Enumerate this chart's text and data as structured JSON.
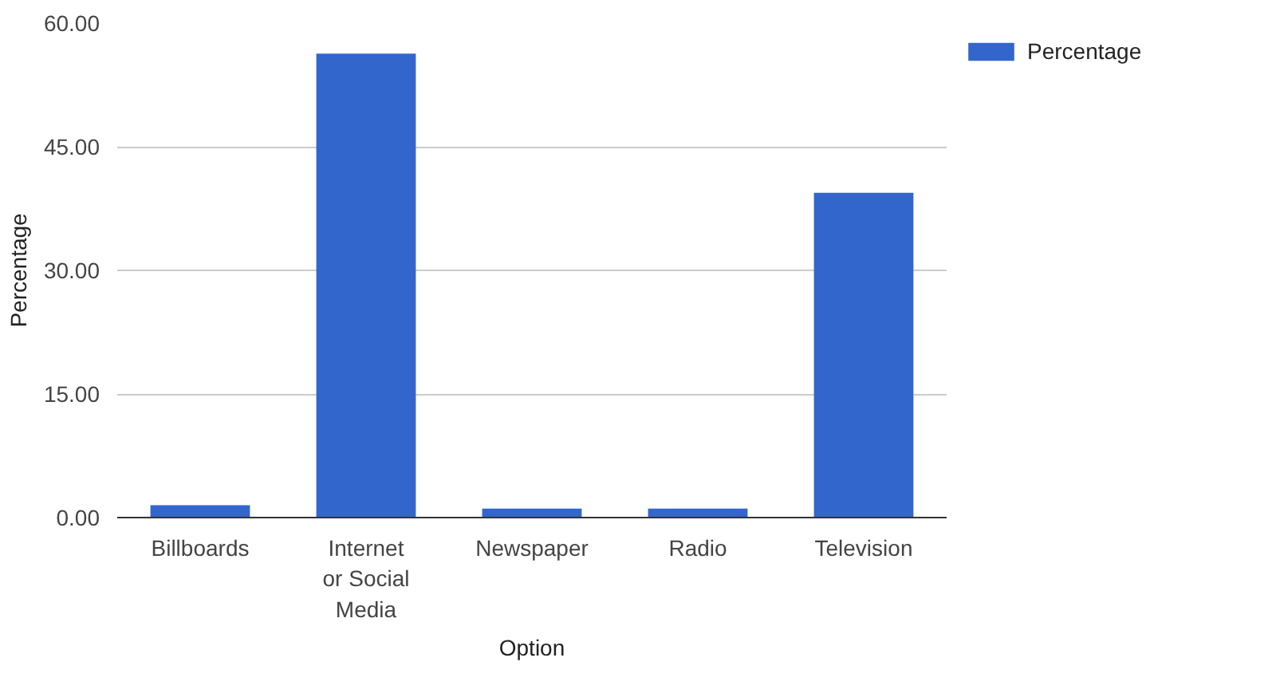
{
  "chart_data": {
    "type": "bar",
    "xlabel": "Option",
    "ylabel": "Percentage",
    "categories": [
      "Billboards",
      "Internet or Social Media",
      "Newspaper",
      "Radio",
      "Television"
    ],
    "series": [
      {
        "name": "Percentage",
        "color": "#3366cc",
        "values": [
          1.5,
          56.3,
          1.1,
          1.1,
          39.4
        ]
      }
    ],
    "ylim": [
      0,
      60
    ],
    "yticks": [
      {
        "value": 0,
        "label": "0.00"
      },
      {
        "value": 15,
        "label": "15.00"
      },
      {
        "value": 30,
        "label": "30.00"
      },
      {
        "value": 45,
        "label": "45.00"
      },
      {
        "value": 60,
        "label": "60.00"
      }
    ],
    "grid": "y",
    "legend": "top right"
  }
}
